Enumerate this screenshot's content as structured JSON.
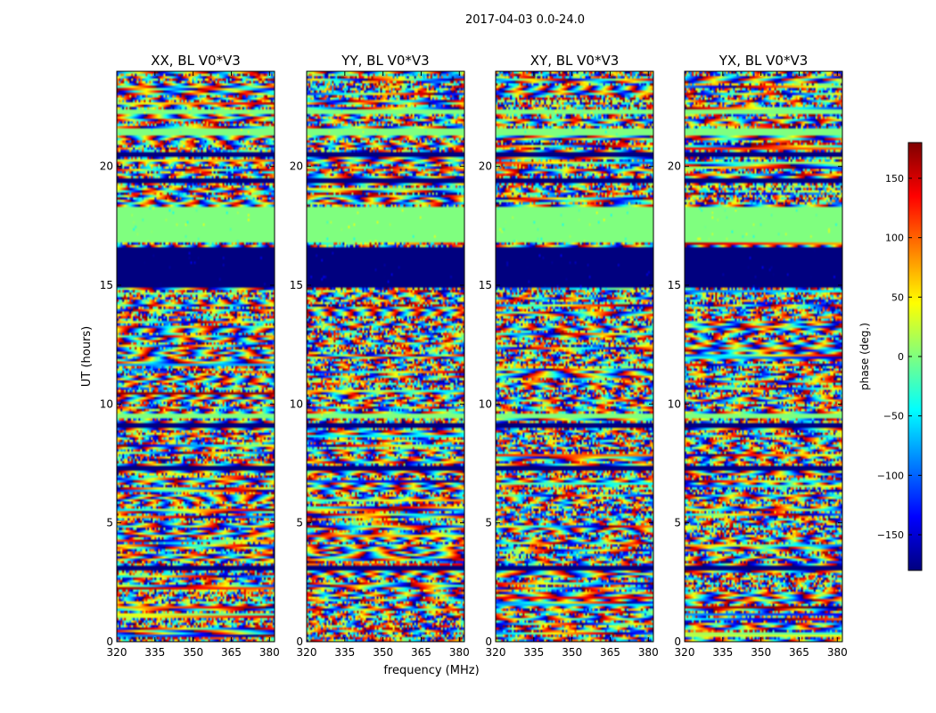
{
  "figure": {
    "suptitle": "2017-04-03 0.0-24.0",
    "xlabel": "frequency (MHz)",
    "ylabel": "UT (hours)"
  },
  "chart_data": {
    "type": "heatmap",
    "title": "2017-04-03 0.0-24.0",
    "xlabel": "frequency (MHz)",
    "ylabel": "UT (hours)",
    "xlim": [
      320,
      382
    ],
    "ylim": [
      0,
      24
    ],
    "xticks": [
      320,
      335,
      350,
      365,
      380
    ],
    "yticks": [
      0,
      5,
      10,
      15,
      20
    ],
    "colormap": "jet",
    "panels": [
      {
        "title": "XX, BL V0*V3",
        "polarization": "XX"
      },
      {
        "title": "YY, BL V0*V3",
        "polarization": "YY"
      },
      {
        "title": "XY, BL V0*V3",
        "polarization": "XY"
      },
      {
        "title": "YX, BL V0*V3",
        "polarization": "YX"
      }
    ],
    "colorbar": {
      "label": "phase (deg.)",
      "range": [
        -180,
        180
      ],
      "ticks": [
        150,
        100,
        50,
        0,
        -50,
        -100,
        -150
      ],
      "tick_labels": [
        "150",
        "100",
        "50",
        "0",
        "−50",
        "−100",
        "−150"
      ],
      "colors": [
        "#00007f",
        "#0000ff",
        "#007fff",
        "#00ffff",
        "#7fff7f",
        "#ffff00",
        "#ff7f00",
        "#ff0000",
        "#7f0000"
      ]
    },
    "uniform_bands_hours": [
      {
        "from": 14.9,
        "to": 16.6,
        "phase": -180
      },
      {
        "from": 16.8,
        "to": 18.3,
        "phase": 0
      },
      {
        "from": 9.4,
        "to": 9.6,
        "phase": 0
      },
      {
        "from": 21.3,
        "to": 21.6,
        "phase": 0
      },
      {
        "from": 22.2,
        "to": 22.4,
        "phase": 0
      }
    ],
    "flagged_lines_hours": [
      3.1,
      7.3,
      9.1,
      20.5,
      19.4
    ]
  }
}
